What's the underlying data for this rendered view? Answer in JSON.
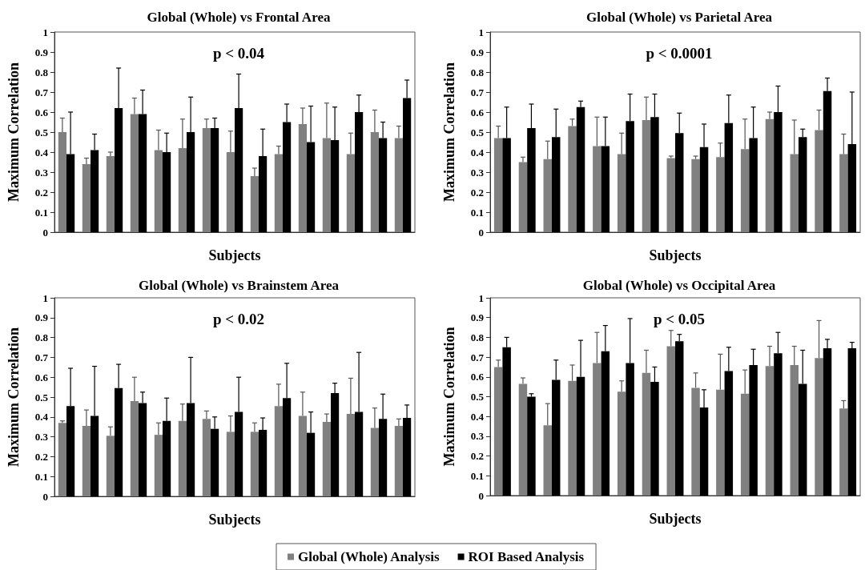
{
  "chart_data": [
    {
      "type": "bar",
      "title": "Global (Whole) vs Frontal Area",
      "xlabel": "Subjects",
      "ylabel": "Maximum Correlation",
      "annotations": [
        "p < 0.04"
      ],
      "categories": [
        null,
        null,
        null,
        null,
        null,
        null,
        null,
        null,
        null,
        null,
        null,
        null,
        null,
        null,
        null
      ],
      "ylim": [
        0,
        1
      ],
      "yticks": [
        0,
        0.1,
        0.2,
        0.3,
        0.4,
        0.5,
        0.6,
        0.7,
        0.8,
        0.9,
        1
      ],
      "tick_labels": "y",
      "series": [
        {
          "color": "#808080",
          "values": [
            0.5,
            0.34,
            0.38,
            0.59,
            0.41,
            0.42,
            0.52,
            0.4,
            0.28,
            0.39,
            0.54,
            0.47,
            0.39,
            0.5,
            0.47
          ],
          "errors": [
            [
              0.5,
              0.57
            ],
            [
              0.34,
              0.37
            ],
            [
              0.38,
              0.4
            ],
            [
              0.59,
              0.67
            ],
            [
              0.41,
              0.51
            ],
            [
              0.42,
              0.565
            ],
            [
              0.52,
              0.565
            ],
            [
              0.4,
              0.505
            ],
            [
              0.28,
              0.32
            ],
            [
              0.39,
              0.43
            ],
            [
              0.54,
              0.62
            ],
            [
              0.47,
              0.645
            ],
            [
              0.39,
              0.495
            ],
            [
              0.5,
              0.61
            ],
            [
              0.47,
              0.53
            ]
          ]
        },
        {
          "color": "#000000",
          "values": [
            0.39,
            0.41,
            0.62,
            0.59,
            0.4,
            0.5,
            0.52,
            0.62,
            0.38,
            0.55,
            0.45,
            0.46,
            0.6,
            0.47,
            0.67
          ],
          "errors": [
            [
              0.39,
              0.6
            ],
            [
              0.41,
              0.49
            ],
            [
              0.62,
              0.82
            ],
            [
              0.59,
              0.71
            ],
            [
              0.4,
              0.495
            ],
            [
              0.5,
              0.675
            ],
            [
              0.52,
              0.57
            ],
            [
              0.62,
              0.79
            ],
            [
              0.38,
              0.515
            ],
            [
              0.55,
              0.64
            ],
            [
              0.45,
              0.63
            ],
            [
              0.46,
              0.625
            ],
            [
              0.6,
              0.685
            ],
            [
              0.47,
              0.55
            ],
            [
              0.67,
              0.76
            ]
          ]
        }
      ]
    },
    {
      "type": "bar",
      "title": "Global (Whole) vs Parietal Area",
      "xlabel": "Subjects",
      "ylabel": "Maximum Correlation",
      "annotations": [
        "p < 0.0001"
      ],
      "categories": [
        null,
        null,
        null,
        null,
        null,
        null,
        null,
        null,
        null,
        null,
        null,
        null,
        null,
        null,
        null
      ],
      "ylim": [
        0,
        1
      ],
      "yticks": [
        0,
        0.1,
        0.2,
        0.3,
        0.4,
        0.5,
        0.6,
        0.7,
        0.8,
        0.9,
        1
      ],
      "tick_labels": "y",
      "series": [
        {
          "color": "#808080",
          "values": [
            0.47,
            0.35,
            0.365,
            0.53,
            0.43,
            0.39,
            0.56,
            0.37,
            0.365,
            0.375,
            0.415,
            0.565,
            0.39,
            0.51,
            0.39
          ],
          "errors": [
            [
              0.47,
              0.53
            ],
            [
              0.35,
              0.375
            ],
            [
              0.365,
              0.455
            ],
            [
              0.53,
              0.565
            ],
            [
              0.43,
              0.575
            ],
            [
              0.39,
              0.495
            ],
            [
              0.56,
              0.675
            ],
            [
              0.37,
              0.38
            ],
            [
              0.365,
              0.38
            ],
            [
              0.375,
              0.445
            ],
            [
              0.415,
              0.565
            ],
            [
              0.565,
              0.6
            ],
            [
              0.39,
              0.56
            ],
            [
              0.51,
              0.61
            ],
            [
              0.39,
              0.49
            ]
          ]
        },
        {
          "color": "#000000",
          "values": [
            0.47,
            0.52,
            0.475,
            0.625,
            0.43,
            0.555,
            0.575,
            0.495,
            0.425,
            0.545,
            0.47,
            0.6,
            0.475,
            0.705,
            0.44
          ],
          "errors": [
            [
              0.47,
              0.625
            ],
            [
              0.52,
              0.64
            ],
            [
              0.475,
              0.615
            ],
            [
              0.625,
              0.655
            ],
            [
              0.43,
              0.575
            ],
            [
              0.555,
              0.69
            ],
            [
              0.575,
              0.69
            ],
            [
              0.495,
              0.595
            ],
            [
              0.425,
              0.54
            ],
            [
              0.545,
              0.685
            ],
            [
              0.47,
              0.625
            ],
            [
              0.6,
              0.73
            ],
            [
              0.475,
              0.515
            ],
            [
              0.705,
              0.77
            ],
            [
              0.44,
              0.7
            ]
          ]
        }
      ]
    },
    {
      "type": "bar",
      "title": "Global (Whole) vs Brainstem Area",
      "xlabel": "Subjects",
      "ylabel": "Maximum Correlation",
      "annotations": [
        "p < 0.02"
      ],
      "categories": [
        null,
        null,
        null,
        null,
        null,
        null,
        null,
        null,
        null,
        null,
        null,
        null,
        null,
        null,
        null
      ],
      "ylim": [
        0,
        1
      ],
      "yticks": [
        0,
        0.1,
        0.2,
        0.3,
        0.4,
        0.5,
        0.6,
        0.7,
        0.8,
        0.9,
        1
      ],
      "tick_labels": "y",
      "legend": "bottom",
      "series": [
        {
          "name": "Global (Whole) Analysis",
          "color": "#808080",
          "values": [
            0.37,
            0.355,
            0.305,
            0.48,
            0.31,
            0.38,
            0.39,
            0.325,
            0.325,
            0.455,
            0.405,
            0.375,
            0.415,
            0.345,
            0.355
          ],
          "errors": [
            [
              0.37,
              0.38
            ],
            [
              0.355,
              0.435
            ],
            [
              0.305,
              0.35
            ],
            [
              0.48,
              0.6
            ],
            [
              0.31,
              0.37
            ],
            [
              0.38,
              0.465
            ],
            [
              0.39,
              0.43
            ],
            [
              0.325,
              0.405
            ],
            [
              0.325,
              0.37
            ],
            [
              0.455,
              0.565
            ],
            [
              0.405,
              0.525
            ],
            [
              0.375,
              0.415
            ],
            [
              0.415,
              0.595
            ],
            [
              0.345,
              0.445
            ],
            [
              0.355,
              0.39
            ]
          ]
        },
        {
          "name": "ROI Based Analysis",
          "color": "#000000",
          "values": [
            0.455,
            0.405,
            0.545,
            0.47,
            0.38,
            0.47,
            0.34,
            0.425,
            0.335,
            0.495,
            0.32,
            0.52,
            0.425,
            0.39,
            0.395
          ],
          "errors": [
            [
              0.455,
              0.645
            ],
            [
              0.405,
              0.655
            ],
            [
              0.545,
              0.665
            ],
            [
              0.47,
              0.525
            ],
            [
              0.38,
              0.495
            ],
            [
              0.47,
              0.7
            ],
            [
              0.34,
              0.4
            ],
            [
              0.425,
              0.6
            ],
            [
              0.335,
              0.395
            ],
            [
              0.495,
              0.67
            ],
            [
              0.32,
              0.425
            ],
            [
              0.52,
              0.57
            ],
            [
              0.425,
              0.725
            ],
            [
              0.39,
              0.515
            ],
            [
              0.395,
              0.46
            ]
          ]
        }
      ]
    },
    {
      "type": "bar",
      "title": "Global (Whole) vs Occipital Area",
      "xlabel": "Subjects",
      "ylabel": "Maximum Correlation",
      "annotations": [
        "p < 0.05"
      ],
      "categories": [
        null,
        null,
        null,
        null,
        null,
        null,
        null,
        null,
        null,
        null,
        null,
        null,
        null,
        null,
        null
      ],
      "ylim": [
        0,
        1
      ],
      "yticks": [
        0,
        0.1,
        0.2,
        0.3,
        0.4,
        0.5,
        0.6,
        0.7,
        0.8,
        0.9,
        1
      ],
      "tick_labels": "y",
      "series": [
        {
          "color": "#808080",
          "values": [
            0.65,
            0.565,
            0.355,
            0.58,
            0.67,
            0.525,
            0.62,
            0.755,
            0.545,
            0.535,
            0.515,
            0.655,
            0.66,
            0.695,
            0.44
          ],
          "errors": [
            [
              0.65,
              0.685
            ],
            [
              0.565,
              0.595
            ],
            [
              0.355,
              0.465
            ],
            [
              0.58,
              0.66
            ],
            [
              0.67,
              0.825
            ],
            [
              0.525,
              0.58
            ],
            [
              0.62,
              0.735
            ],
            [
              0.755,
              0.835
            ],
            [
              0.545,
              0.62
            ],
            [
              0.535,
              0.715
            ],
            [
              0.515,
              0.635
            ],
            [
              0.655,
              0.755
            ],
            [
              0.66,
              0.755
            ],
            [
              0.695,
              0.885
            ],
            [
              0.44,
              0.48
            ]
          ]
        },
        {
          "color": "#000000",
          "values": [
            0.75,
            0.5,
            0.585,
            0.6,
            0.73,
            0.67,
            0.575,
            0.78,
            0.445,
            0.63,
            0.66,
            0.72,
            0.565,
            0.745,
            0.745
          ],
          "errors": [
            [
              0.75,
              0.8
            ],
            [
              0.5,
              0.515
            ],
            [
              0.585,
              0.685
            ],
            [
              0.6,
              0.785
            ],
            [
              0.73,
              0.86
            ],
            [
              0.67,
              0.895
            ],
            [
              0.575,
              0.65
            ],
            [
              0.78,
              0.815
            ],
            [
              0.445,
              0.535
            ],
            [
              0.63,
              0.75
            ],
            [
              0.66,
              0.74
            ],
            [
              0.72,
              0.825
            ],
            [
              0.565,
              0.735
            ],
            [
              0.745,
              0.79
            ],
            [
              0.745,
              0.775
            ]
          ]
        }
      ]
    }
  ]
}
